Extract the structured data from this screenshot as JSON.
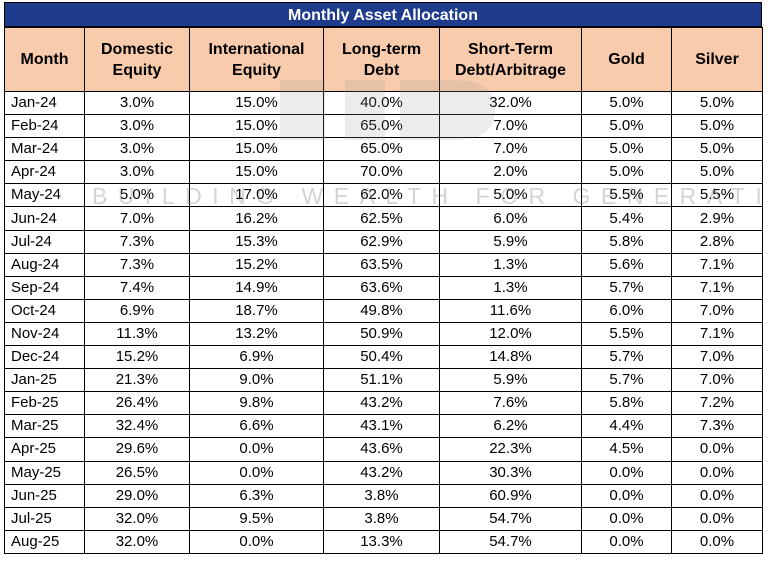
{
  "table": {
    "title": "Monthly Asset Allocation",
    "columns": [
      "Month",
      "Domestic Equity",
      "International Equity",
      "Long-term Debt",
      "Short-Term Debt/Arbitrage",
      "Gold",
      "Silver"
    ],
    "rows": [
      [
        "Jan-24",
        "3.0%",
        "15.0%",
        "40.0%",
        "32.0%",
        "5.0%",
        "5.0%"
      ],
      [
        "Feb-24",
        "3.0%",
        "15.0%",
        "65.0%",
        "7.0%",
        "5.0%",
        "5.0%"
      ],
      [
        "Mar-24",
        "3.0%",
        "15.0%",
        "65.0%",
        "7.0%",
        "5.0%",
        "5.0%"
      ],
      [
        "Apr-24",
        "3.0%",
        "15.0%",
        "70.0%",
        "2.0%",
        "5.0%",
        "5.0%"
      ],
      [
        "May-24",
        "5.0%",
        "17.0%",
        "62.0%",
        "5.0%",
        "5.5%",
        "5.5%"
      ],
      [
        "Jun-24",
        "7.0%",
        "16.2%",
        "62.5%",
        "6.0%",
        "5.4%",
        "2.9%"
      ],
      [
        "Jul-24",
        "7.3%",
        "15.3%",
        "62.9%",
        "5.9%",
        "5.8%",
        "2.8%"
      ],
      [
        "Aug-24",
        "7.3%",
        "15.2%",
        "63.5%",
        "1.3%",
        "5.6%",
        "7.1%"
      ],
      [
        "Sep-24",
        "7.4%",
        "14.9%",
        "63.6%",
        "1.3%",
        "5.7%",
        "7.1%"
      ],
      [
        "Oct-24",
        "6.9%",
        "18.7%",
        "49.8%",
        "11.6%",
        "6.0%",
        "7.0%"
      ],
      [
        "Nov-24",
        "11.3%",
        "13.2%",
        "50.9%",
        "12.0%",
        "5.5%",
        "7.1%"
      ],
      [
        "Dec-24",
        "15.2%",
        "6.9%",
        "50.4%",
        "14.8%",
        "5.7%",
        "7.0%"
      ],
      [
        "Jan-25",
        "21.3%",
        "9.0%",
        "51.1%",
        "5.9%",
        "5.7%",
        "7.0%"
      ],
      [
        "Feb-25",
        "26.4%",
        "9.8%",
        "43.2%",
        "7.6%",
        "5.8%",
        "7.2%"
      ],
      [
        "Mar-25",
        "32.4%",
        "6.6%",
        "43.1%",
        "6.2%",
        "4.4%",
        "7.3%"
      ],
      [
        "Apr-25",
        "29.6%",
        "0.0%",
        "43.6%",
        "22.3%",
        "4.5%",
        "0.0%"
      ],
      [
        "May-25",
        "26.5%",
        "0.0%",
        "43.2%",
        "30.3%",
        "0.0%",
        "0.0%"
      ],
      [
        "Jun-25",
        "29.0%",
        "6.3%",
        "3.8%",
        "60.9%",
        "0.0%",
        "0.0%"
      ],
      [
        "Jul-25",
        "32.0%",
        "9.5%",
        "3.8%",
        "54.7%",
        "0.0%",
        "0.0%"
      ],
      [
        "Aug-25",
        "32.0%",
        "0.0%",
        "13.3%",
        "54.7%",
        "0.0%",
        "0.0%"
      ]
    ]
  },
  "watermark": {
    "text": "BUILDING WEALTH FOR GENERATIONS"
  },
  "colors": {
    "title_bg": "#1f3b8c",
    "header_bg": "#f8cbad",
    "watermark": "#9a9a9a"
  }
}
